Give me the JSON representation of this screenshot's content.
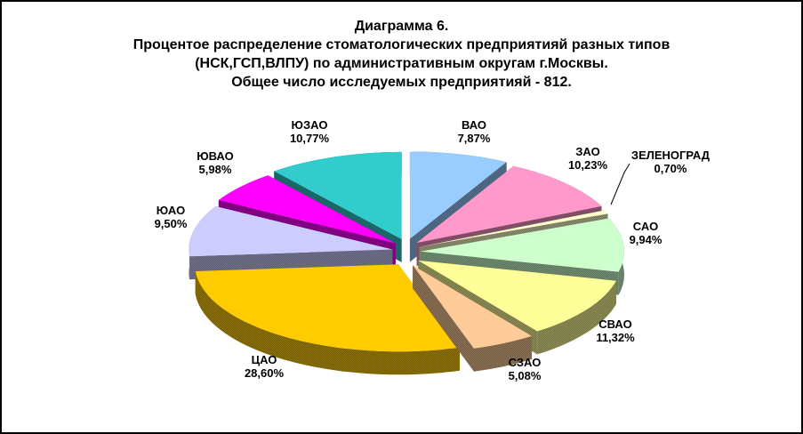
{
  "window": {
    "background_color": "#FFFFFF",
    "border_color": "#000000"
  },
  "chart_data": {
    "type": "pie",
    "style": "3d-exploded",
    "direction": "clockwise",
    "start_angle_deg": 0,
    "legend": "none",
    "title_lines": [
      "Диаграмма 6.",
      "Процентое распределение стоматологических предприятияй разных типов",
      "(НСК,ГСП,ВЛПУ) по административным округам г.Москвы.",
      "Общее число исследуемых предприятияй - 812."
    ],
    "total_enterprises": "812",
    "unit": "%",
    "slices": [
      {
        "key": "vao",
        "label": "ВАО",
        "value": 7.87,
        "value_label": "7,87%",
        "color": "#99CCFF"
      },
      {
        "key": "zao",
        "label": "ЗАО",
        "value": 10.23,
        "value_label": "10,23%",
        "color": "#FF99CC"
      },
      {
        "key": "zelenograd",
        "label": "ЗЕЛЕНОГРАД",
        "value": 0.7,
        "value_label": "0,70%",
        "color": "#FFFFCC"
      },
      {
        "key": "sao",
        "label": "САО",
        "value": 9.94,
        "value_label": "9,94%",
        "color": "#CCFFCC"
      },
      {
        "key": "svao",
        "label": "СВАО",
        "value": 11.32,
        "value_label": "11,32%",
        "color": "#FFFF99"
      },
      {
        "key": "szao",
        "label": "СЗАО",
        "value": 5.08,
        "value_label": "5,08%",
        "color": "#FFCC99"
      },
      {
        "key": "cao",
        "label": "ЦАО",
        "value": 28.6,
        "value_label": "28,60%",
        "color": "#FFCC00"
      },
      {
        "key": "yuao",
        "label": "ЮАО",
        "value": 9.5,
        "value_label": "9,50%",
        "color": "#CCCCFF"
      },
      {
        "key": "yuvao",
        "label": "ЮВАО",
        "value": 5.98,
        "value_label": "5,98%",
        "color": "#FF00FF"
      },
      {
        "key": "yuzao",
        "label": "ЮЗАО",
        "value": 10.77,
        "value_label": "10,77%",
        "color": "#33CCCC"
      }
    ]
  }
}
